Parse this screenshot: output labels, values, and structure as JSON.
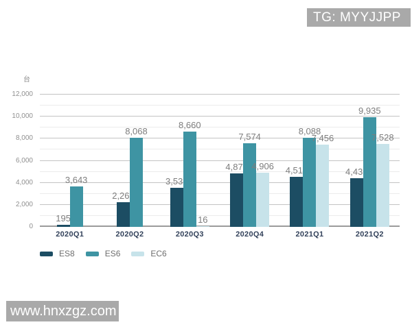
{
  "watermarks": {
    "top": "TG: MYYJJPP",
    "bottom": "www.hnxzgz.com"
  },
  "chart_data": {
    "type": "bar",
    "title": "",
    "unit_label": "台",
    "categories": [
      "2020Q1",
      "2020Q2",
      "2020Q3",
      "2020Q4",
      "2021Q1",
      "2021Q2"
    ],
    "series": [
      {
        "name": "ES8",
        "color": "#1c4d63",
        "values": [
          195,
          2263,
          3530,
          4873,
          4516,
          4433
        ]
      },
      {
        "name": "ES6",
        "color": "#3e94a3",
        "values": [
          3643,
          8068,
          8660,
          7574,
          8088,
          9935
        ]
      },
      {
        "name": "EC6",
        "color": "#c7e3ea",
        "values": [
          null,
          null,
          16,
          4906,
          7456,
          7528
        ]
      }
    ],
    "ylim": [
      0,
      12000
    ],
    "y_tick_step": 2000,
    "y_minor_step": 1000,
    "y_tick_labels": [
      "0",
      "2,000",
      "4,000",
      "6,000",
      "8,000",
      "10,000",
      "12,000"
    ],
    "grid": true,
    "value_labels_shown": true,
    "legend_position": "bottom-left"
  },
  "colors": {
    "background": "#ffffff",
    "value_label": "#7d7d7d",
    "tick_label": "#8f8f8f",
    "x_label": "#32415a",
    "grid_major": "#c3c3c3",
    "grid_minor": "#ebebeb",
    "baseline": "#9b9b9b",
    "legend_text": "#6e6e6e",
    "watermark_bg": "#a9a9a9",
    "watermark_text": "#ffffff"
  }
}
